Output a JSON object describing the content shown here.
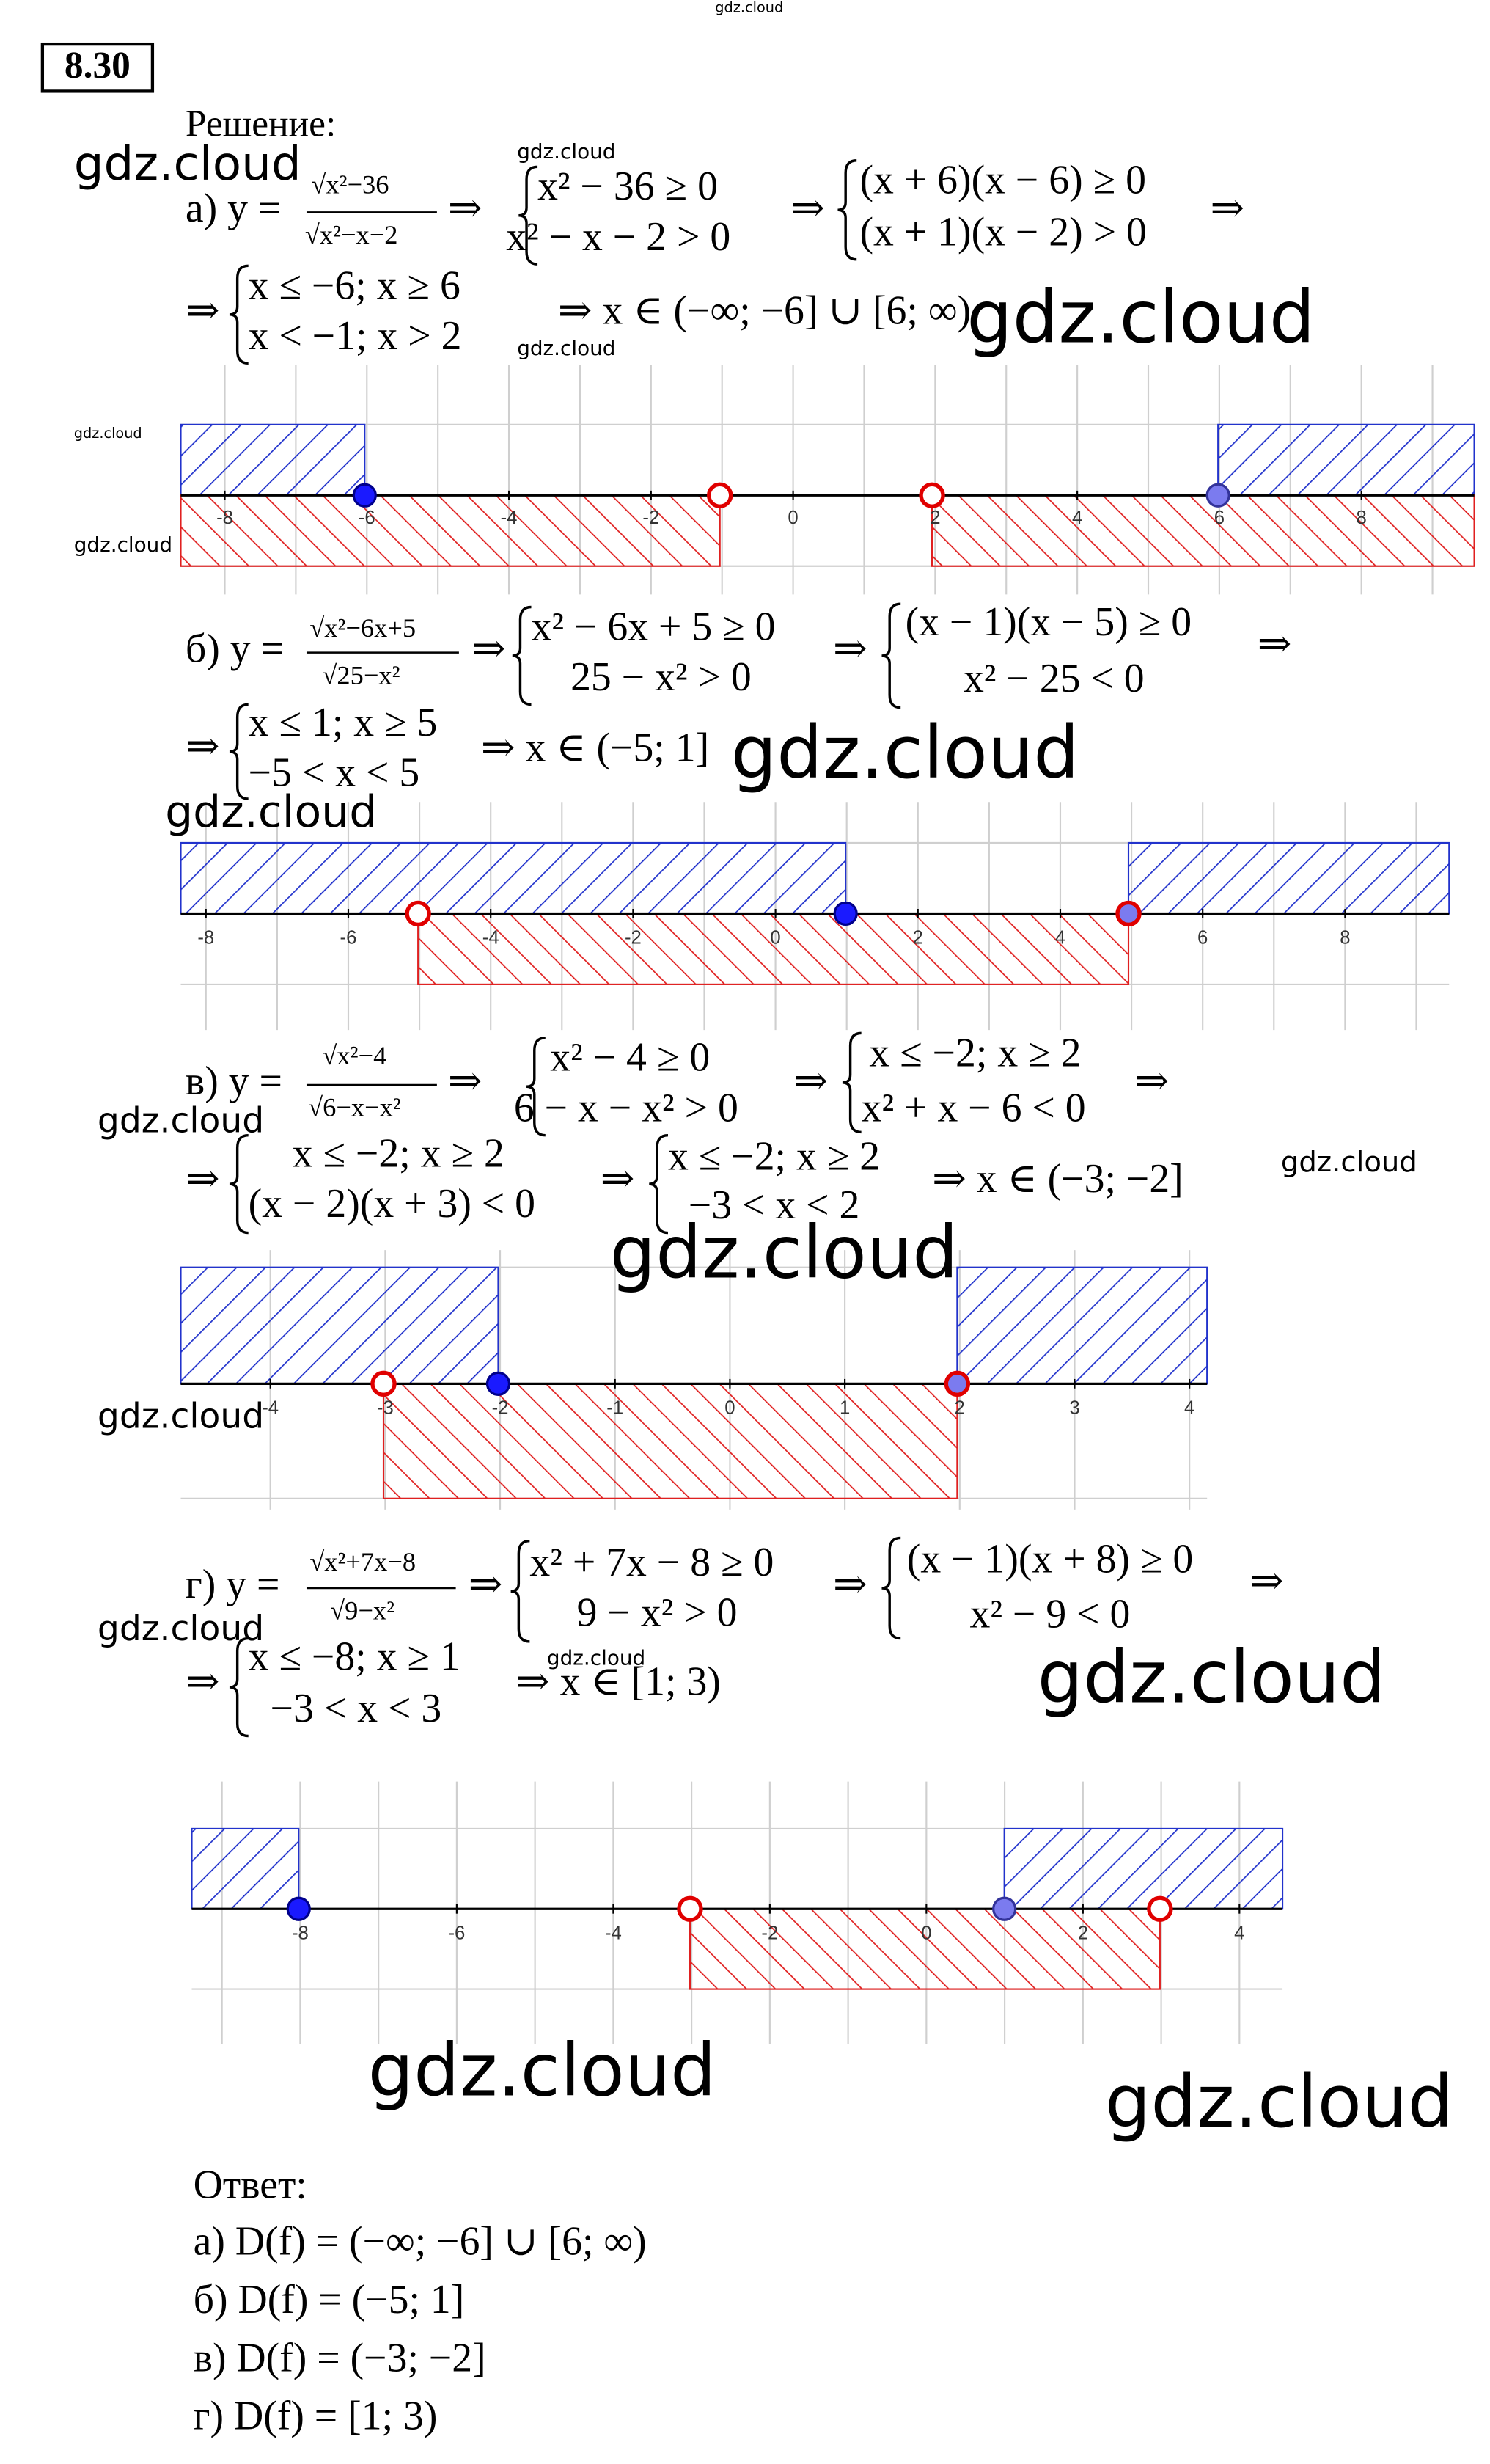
{
  "header": {
    "number": "8.30",
    "solution": "Решение:"
  },
  "parts": [
    {
      "texts": [
        "а) y =",
        "√x²−36",
        "√x²−x−2",
        "⇒",
        "x² − 36 ≥ 0",
        "x² − x − 2 > 0",
        "⇒",
        "(x + 6)(x − 6) ≥ 0",
        "(x + 1)(x − 2) > 0",
        "⇒",
        "⇒",
        "x ≤ −6; x ≥ 6",
        "x < −1; x > 2",
        "⇒ x ∈ (−∞; −6] ∪ [6; ∞)"
      ]
    },
    {
      "texts": [
        "б) y =",
        "√x²−6x+5",
        "√25−x²",
        "⇒",
        "x² − 6x + 5 ≥ 0",
        "25 − x² > 0",
        "⇒",
        "(x − 1)(x − 5) ≥ 0",
        "x² − 25 < 0",
        "⇒",
        "⇒",
        "x ≤ 1; x ≥ 5",
        "−5 < x < 5",
        "⇒ x ∈ (−5; 1]"
      ]
    },
    {
      "texts": [
        "в) y =",
        "√x²−4",
        "√6−x−x²",
        "⇒",
        "x² − 4 ≥ 0",
        "6 − x − x² > 0",
        "⇒",
        "x ≤ −2; x ≥ 2",
        "x² + x − 6 < 0",
        "⇒",
        "⇒",
        "x ≤ −2; x ≥ 2",
        "(x − 2)(x + 3) < 0",
        "⇒",
        "x ≤ −2; x ≥ 2",
        "−3 < x < 2",
        "⇒ x ∈ (−3; −2]"
      ]
    },
    {
      "texts": [
        "г) y =",
        "√x²+7x−8",
        "√9−x²",
        "⇒",
        "x² + 7x − 8 ≥ 0",
        "9 − x² > 0",
        "⇒",
        "(x − 1)(x + 8) ≥ 0",
        "x² − 9 < 0",
        "⇒",
        "⇒",
        "x ≤ −8; x ≥ 1",
        "−3 < x < 3",
        "⇒ x ∈ [1; 3)"
      ]
    }
  ],
  "number_lines": [
    {
      "ticks": [
        "-8",
        "-6",
        "-4",
        "-2",
        "0",
        "2",
        "4",
        "6",
        "8"
      ]
    },
    {
      "ticks": [
        "-8",
        "-6",
        "-4",
        "-2",
        "0",
        "2",
        "4",
        "6",
        "8"
      ]
    },
    {
      "ticks": [
        "-4",
        "-3",
        "-2",
        "-1",
        "0",
        "1",
        "2",
        "3",
        "4"
      ]
    },
    {
      "ticks": [
        "-8",
        "-6",
        "-4",
        "-2",
        "0",
        "2",
        "4"
      ]
    }
  ],
  "answer": {
    "title": "Ответ:",
    "lines": [
      "а) D(f) = (−∞; −6] ∪ [6; ∞)",
      "б) D(f) = (−5; 1]",
      "в) D(f) = (−3; −2]",
      "г) D(f) = [1; 3)"
    ]
  },
  "watermarks": [
    "gdz.cloud",
    "gdz.cloud",
    "gdz.cloud",
    "gdz.cloud",
    "gdz.cloud",
    "gdz.cloud",
    "gdz.cloud",
    "gdz.cloud",
    "gdz.cloud",
    "gdz.cloud",
    "gdz.cloud",
    "gdz.cloud",
    "gdz.cloud",
    "gdz.cloud",
    "gdz.cloud",
    "gdz.cloud",
    "gdz.cloud",
    "gdz.cloud"
  ]
}
